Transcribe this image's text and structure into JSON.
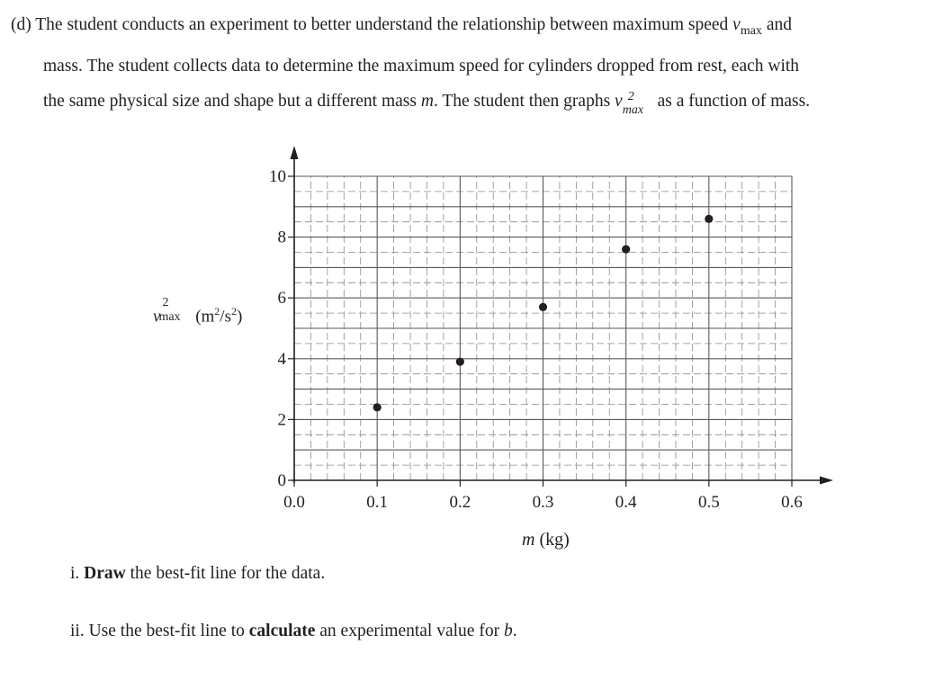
{
  "question": {
    "line1_prefix": "(d) The student conducts an experiment to better understand the relationship between maximum speed",
    "line1_suffix": "and",
    "line2": "mass. The student collects data to determine the maximum speed for cylinders dropped from rest, each with",
    "line3_prefix": "the same physical size and shape but a different mass",
    "line3_var": "m",
    "line3_mid": ". The student then graphs",
    "line3_suffix": "as a function of mass.",
    "v_symbol": "v",
    "max_sub": "max",
    "sq": "2"
  },
  "part_i": {
    "prefix": "i. ",
    "bold": "Draw",
    "suffix": " the best-fit line for the data."
  },
  "part_ii": {
    "prefix": "ii. Use the best-fit line to ",
    "bold": "calculate",
    "mid": " an experimental value for ",
    "var": "b",
    "end": "."
  },
  "chart_data": {
    "type": "scatter",
    "xlabel_var": "m",
    "xlabel_unit": "(kg)",
    "ylabel_unit_prefix": "(m",
    "ylabel_unit_mid": "/s",
    "ylabel_unit_end": ")",
    "xlim": [
      0,
      0.6
    ],
    "ylim": [
      0,
      10
    ],
    "x_ticks": [
      "0.0",
      "0.1",
      "0.2",
      "0.3",
      "0.4",
      "0.5",
      "0.6"
    ],
    "y_ticks": [
      "0",
      "2",
      "4",
      "6",
      "8",
      "10"
    ],
    "grid": true,
    "points": [
      {
        "x": 0.1,
        "y": 2.4
      },
      {
        "x": 0.2,
        "y": 3.9
      },
      {
        "x": 0.3,
        "y": 5.7
      },
      {
        "x": 0.4,
        "y": 7.6
      },
      {
        "x": 0.5,
        "y": 8.6
      }
    ]
  }
}
